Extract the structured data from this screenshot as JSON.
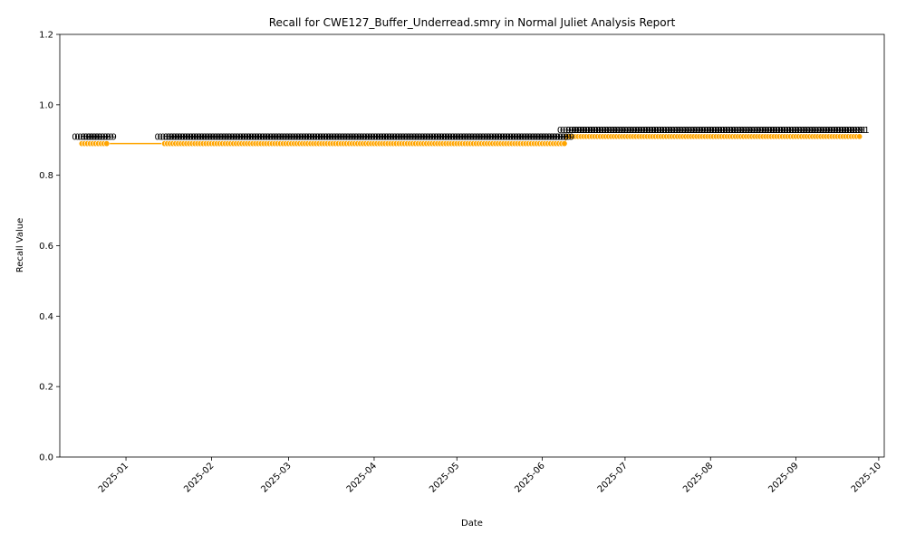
{
  "chart_data": {
    "type": "line",
    "title": "Recall for CWE127_Buffer_Underread.smry in Normal Juliet Analysis Report",
    "xlabel": "Date",
    "ylabel": "Recall Value",
    "ylim": [
      0,
      1.2
    ],
    "xlim": [
      "2024-12-08",
      "2025-10-03"
    ],
    "y_ticks": [
      "0.0",
      "0.2",
      "0.4",
      "0.6",
      "0.8",
      "1.0",
      "1.2"
    ],
    "x_ticks": [
      {
        "date": "2025-01-01",
        "label": "2025-01"
      },
      {
        "date": "2025-02-01",
        "label": "2025-02"
      },
      {
        "date": "2025-03-01",
        "label": "2025-03"
      },
      {
        "date": "2025-04-01",
        "label": "2025-04"
      },
      {
        "date": "2025-05-01",
        "label": "2025-05"
      },
      {
        "date": "2025-06-01",
        "label": "2025-06"
      },
      {
        "date": "2025-07-01",
        "label": "2025-07"
      },
      {
        "date": "2025-08-01",
        "label": "2025-08"
      },
      {
        "date": "2025-09-01",
        "label": "2025-09"
      },
      {
        "date": "2025-10-01",
        "label": "2025-10"
      }
    ],
    "series": [
      {
        "color": "#ffa500",
        "segments": [
          {
            "start": "2024-12-16",
            "end": "2024-12-25",
            "value": 0.89,
            "label": "0.89"
          },
          {
            "start": "2025-01-15",
            "end": "2025-06-09",
            "value": 0.89,
            "label": "0.89"
          },
          {
            "start": "2025-06-10",
            "end": "2025-09-24",
            "value": 0.91,
            "label": "0.91"
          }
        ]
      }
    ],
    "grid": false,
    "legend": "none"
  }
}
